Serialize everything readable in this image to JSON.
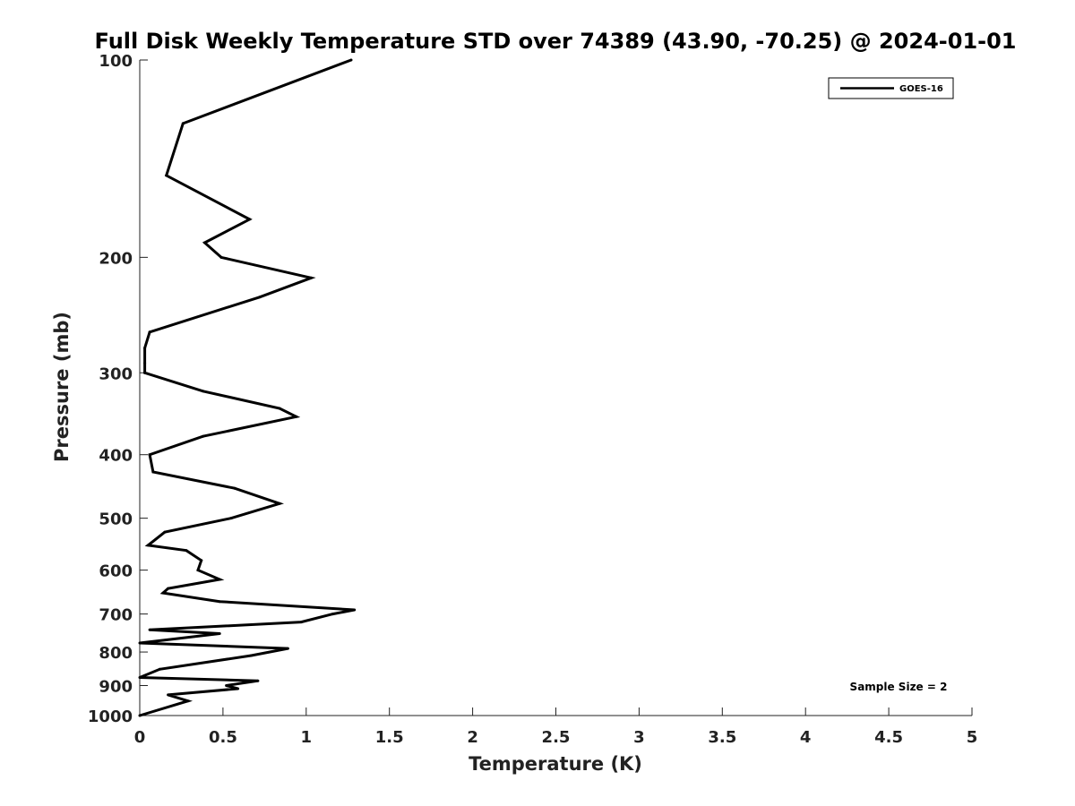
{
  "chart_data": {
    "type": "line",
    "title": "Full Disk Weekly Temperature STD over 74389 (43.90, -70.25) @ 2024-01-01",
    "xlabel": "Temperature (K)",
    "ylabel": "Pressure (mb)",
    "xlim": [
      0,
      5
    ],
    "ylim": [
      100,
      1000
    ],
    "y_scale": "log",
    "y_reversed": true,
    "x_ticks": [
      "0",
      "0.5",
      "1",
      "1.5",
      "2",
      "2.5",
      "3",
      "3.5",
      "4",
      "4.5",
      "5"
    ],
    "y_ticks": [
      "100",
      "200",
      "300",
      "400",
      "500",
      "600",
      "700",
      "800",
      "900",
      "1000"
    ],
    "grid": false,
    "legend_position": "top-right",
    "annotation": "Sample Size = 2",
    "series": [
      {
        "name": "GOES-16",
        "color": "#000000",
        "points": [
          [
            1.27,
            100
          ],
          [
            0.26,
            125
          ],
          [
            0.16,
            150
          ],
          [
            0.66,
            175
          ],
          [
            0.39,
            190
          ],
          [
            0.49,
            200
          ],
          [
            1.03,
            215
          ],
          [
            0.72,
            230
          ],
          [
            0.06,
            260
          ],
          [
            0.03,
            275
          ],
          [
            0.03,
            290
          ],
          [
            0.03,
            300
          ],
          [
            0.38,
            320
          ],
          [
            0.84,
            340
          ],
          [
            0.94,
            350
          ],
          [
            0.38,
            375
          ],
          [
            0.06,
            400
          ],
          [
            0.08,
            425
          ],
          [
            0.57,
            450
          ],
          [
            0.84,
            475
          ],
          [
            0.55,
            500
          ],
          [
            0.15,
            525
          ],
          [
            0.05,
            550
          ],
          [
            0.28,
            560
          ],
          [
            0.37,
            580
          ],
          [
            0.35,
            600
          ],
          [
            0.48,
            620
          ],
          [
            0.17,
            640
          ],
          [
            0.14,
            650
          ],
          [
            0.48,
            670
          ],
          [
            1.29,
            690
          ],
          [
            1.16,
            700
          ],
          [
            0.97,
            720
          ],
          [
            0.06,
            740
          ],
          [
            0.48,
            750
          ],
          [
            0.0,
            775
          ],
          [
            0.89,
            790
          ],
          [
            0.67,
            810
          ],
          [
            0.12,
            850
          ],
          [
            0.0,
            875
          ],
          [
            0.71,
            885
          ],
          [
            0.52,
            900
          ],
          [
            0.59,
            910
          ],
          [
            0.17,
            930
          ],
          [
            0.29,
            950
          ],
          [
            0.0,
            1000
          ]
        ]
      }
    ]
  }
}
